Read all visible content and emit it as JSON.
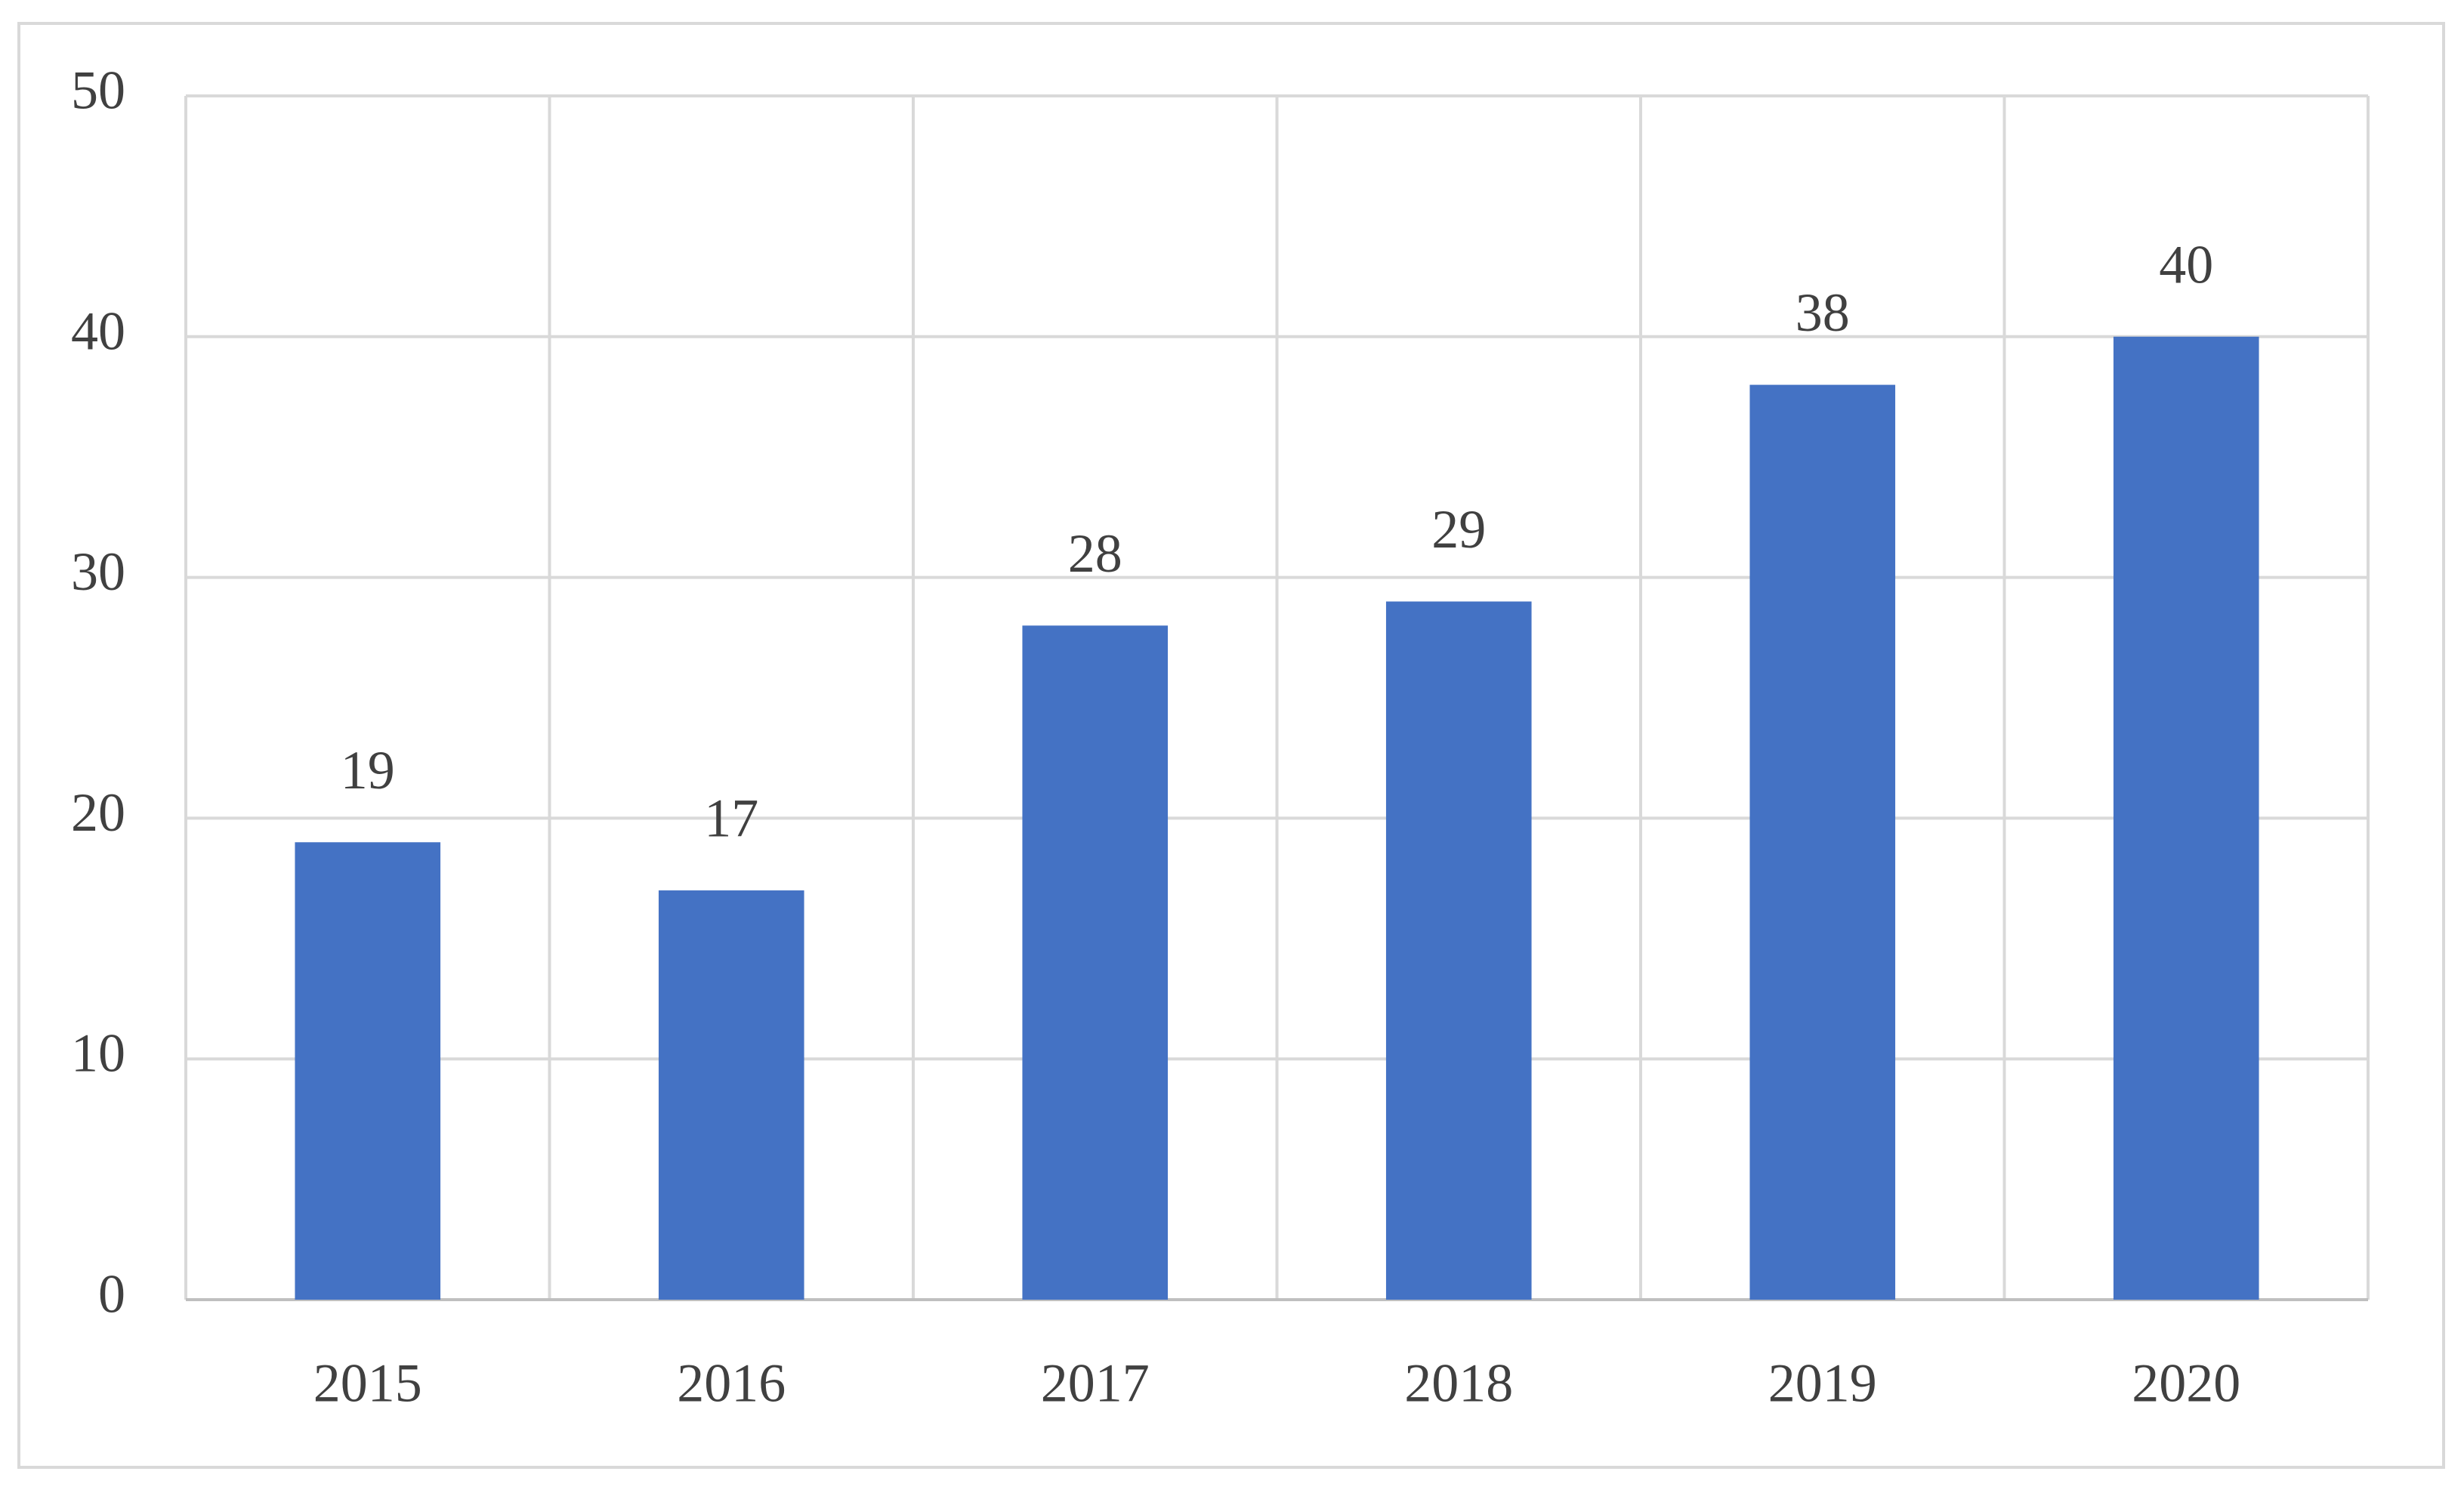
{
  "chart_data": {
    "type": "bar",
    "categories": [
      "2015",
      "2016",
      "2017",
      "2018",
      "2019",
      "2020"
    ],
    "values": [
      19,
      17,
      28,
      29,
      38,
      40
    ],
    "color": "#4472c4",
    "ylim": [
      0,
      50
    ],
    "yticks": [
      0,
      10,
      20,
      30,
      40,
      50
    ],
    "grid": true,
    "data_labels": true
  }
}
